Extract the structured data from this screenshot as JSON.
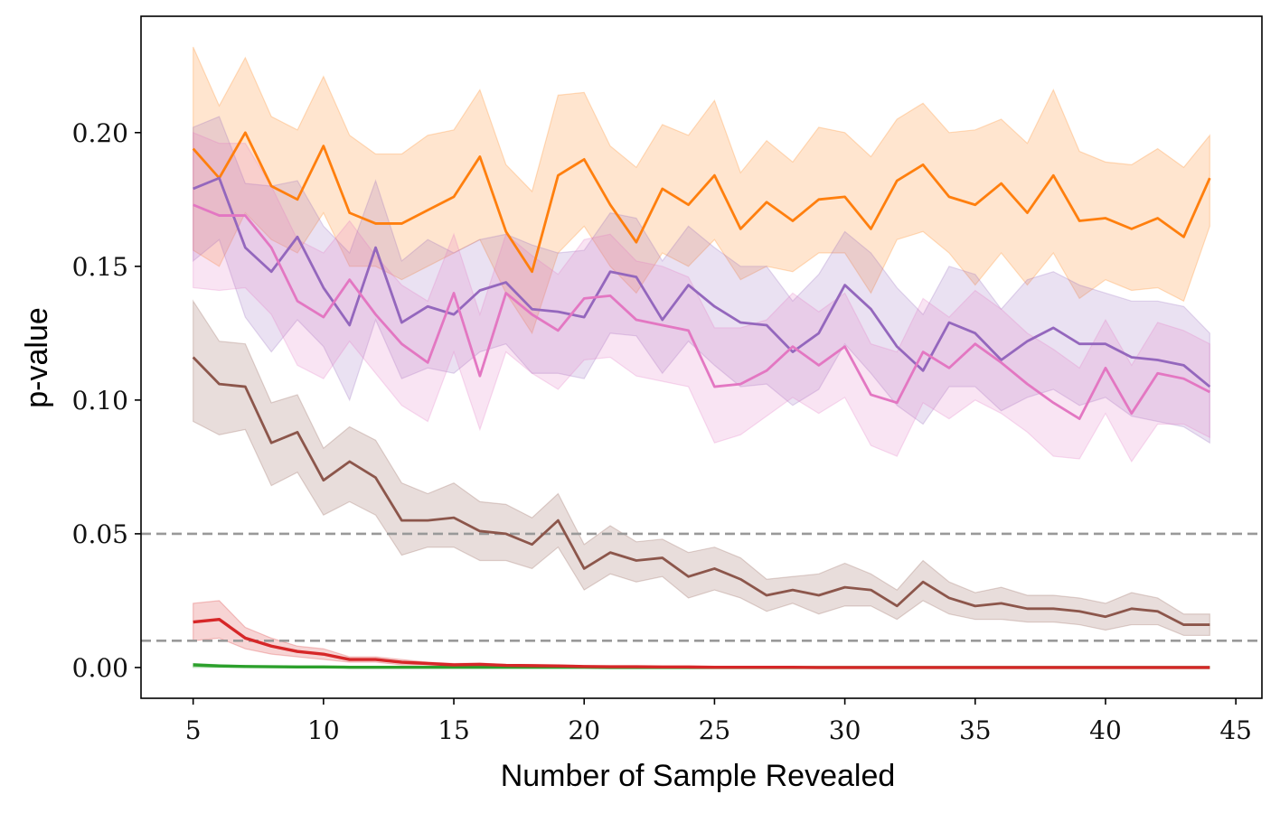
{
  "chart_data": {
    "type": "line",
    "xlabel": "Number of Sample Revealed",
    "ylabel": "p-value",
    "xlim": [
      3,
      46
    ],
    "ylim": [
      -0.0115,
      0.2435
    ],
    "xticks": [
      5,
      10,
      15,
      20,
      25,
      30,
      35,
      40,
      45
    ],
    "xtick_labels": [
      "5",
      "10",
      "15",
      "20",
      "25",
      "30",
      "35",
      "40",
      "45"
    ],
    "yticks": [
      0.0,
      0.05,
      0.1,
      0.15,
      0.2
    ],
    "ytick_labels": [
      "0.00",
      "0.05",
      "0.10",
      "0.15",
      "0.20"
    ],
    "grid": false,
    "reference_lines": [
      {
        "y": 0.05,
        "style": "dashed",
        "color": "#999999"
      },
      {
        "y": 0.01,
        "style": "dashed",
        "color": "#999999"
      }
    ],
    "x": [
      5,
      6,
      7,
      8,
      9,
      10,
      11,
      12,
      13,
      14,
      15,
      16,
      17,
      18,
      19,
      20,
      21,
      22,
      23,
      24,
      25,
      26,
      27,
      28,
      29,
      30,
      31,
      32,
      33,
      34,
      35,
      36,
      37,
      38,
      39,
      40,
      41,
      42,
      43,
      44
    ],
    "series": [
      {
        "color": "#ff7f0e",
        "values": [
          0.194,
          0.183,
          0.2,
          0.18,
          0.175,
          0.195,
          0.17,
          0.166,
          0.166,
          0.171,
          0.176,
          0.191,
          0.163,
          0.148,
          0.184,
          0.19,
          0.173,
          0.159,
          0.179,
          0.173,
          0.184,
          0.164,
          0.174,
          0.167,
          0.175,
          0.176,
          0.164,
          0.182,
          0.188,
          0.176,
          0.173,
          0.181,
          0.17,
          0.184,
          0.167,
          0.168,
          0.164,
          0.168,
          0.161,
          0.183
        ],
        "lower": [
          0.156,
          0.15,
          0.17,
          0.16,
          0.155,
          0.17,
          0.15,
          0.15,
          0.145,
          0.15,
          0.155,
          0.16,
          0.14,
          0.125,
          0.155,
          0.165,
          0.15,
          0.14,
          0.155,
          0.15,
          0.16,
          0.145,
          0.15,
          0.148,
          0.155,
          0.155,
          0.14,
          0.16,
          0.163,
          0.155,
          0.143,
          0.155,
          0.143,
          0.155,
          0.138,
          0.145,
          0.141,
          0.142,
          0.137,
          0.165
        ],
        "upper": [
          0.232,
          0.21,
          0.228,
          0.206,
          0.201,
          0.221,
          0.199,
          0.192,
          0.192,
          0.199,
          0.201,
          0.216,
          0.188,
          0.178,
          0.214,
          0.215,
          0.195,
          0.187,
          0.203,
          0.199,
          0.212,
          0.185,
          0.197,
          0.189,
          0.202,
          0.2,
          0.191,
          0.205,
          0.211,
          0.2,
          0.201,
          0.205,
          0.196,
          0.216,
          0.193,
          0.189,
          0.188,
          0.194,
          0.187,
          0.199
        ]
      },
      {
        "color": "#9467bd",
        "values": [
          0.179,
          0.183,
          0.157,
          0.148,
          0.161,
          0.142,
          0.128,
          0.157,
          0.129,
          0.135,
          0.132,
          0.141,
          0.144,
          0.134,
          0.133,
          0.131,
          0.148,
          0.146,
          0.13,
          0.143,
          0.135,
          0.129,
          0.128,
          0.118,
          0.125,
          0.143,
          0.134,
          0.12,
          0.111,
          0.129,
          0.125,
          0.115,
          0.122,
          0.127,
          0.121,
          0.121,
          0.116,
          0.115,
          0.113,
          0.105
        ],
        "lower": [
          0.152,
          0.16,
          0.131,
          0.118,
          0.13,
          0.12,
          0.1,
          0.13,
          0.108,
          0.112,
          0.11,
          0.118,
          0.121,
          0.11,
          0.11,
          0.108,
          0.125,
          0.124,
          0.11,
          0.122,
          0.113,
          0.105,
          0.106,
          0.098,
          0.104,
          0.121,
          0.11,
          0.098,
          0.091,
          0.105,
          0.105,
          0.096,
          0.101,
          0.104,
          0.098,
          0.101,
          0.094,
          0.092,
          0.09,
          0.084
        ],
        "upper": [
          0.202,
          0.206,
          0.181,
          0.18,
          0.182,
          0.165,
          0.155,
          0.182,
          0.152,
          0.16,
          0.155,
          0.16,
          0.162,
          0.158,
          0.155,
          0.156,
          0.17,
          0.168,
          0.152,
          0.165,
          0.157,
          0.15,
          0.15,
          0.137,
          0.147,
          0.163,
          0.155,
          0.142,
          0.132,
          0.15,
          0.147,
          0.134,
          0.145,
          0.148,
          0.143,
          0.14,
          0.137,
          0.137,
          0.135,
          0.125
        ]
      },
      {
        "color": "#e377c2",
        "values": [
          0.173,
          0.169,
          0.169,
          0.157,
          0.137,
          0.131,
          0.145,
          0.132,
          0.121,
          0.114,
          0.14,
          0.109,
          0.14,
          0.132,
          0.126,
          0.138,
          0.139,
          0.13,
          0.128,
          0.126,
          0.105,
          0.106,
          0.111,
          0.12,
          0.113,
          0.12,
          0.102,
          0.099,
          0.118,
          0.112,
          0.121,
          0.114,
          0.106,
          0.099,
          0.093,
          0.112,
          0.095,
          0.11,
          0.108,
          0.103
        ],
        "lower": [
          0.142,
          0.141,
          0.142,
          0.132,
          0.113,
          0.108,
          0.122,
          0.11,
          0.098,
          0.092,
          0.118,
          0.089,
          0.118,
          0.11,
          0.104,
          0.115,
          0.116,
          0.109,
          0.107,
          0.105,
          0.084,
          0.087,
          0.094,
          0.101,
          0.095,
          0.101,
          0.083,
          0.079,
          0.099,
          0.093,
          0.1,
          0.095,
          0.088,
          0.079,
          0.078,
          0.095,
          0.077,
          0.091,
          0.091,
          0.086
        ],
        "upper": [
          0.2,
          0.196,
          0.196,
          0.18,
          0.16,
          0.155,
          0.167,
          0.154,
          0.143,
          0.137,
          0.162,
          0.132,
          0.162,
          0.154,
          0.147,
          0.16,
          0.162,
          0.152,
          0.15,
          0.146,
          0.127,
          0.127,
          0.13,
          0.14,
          0.133,
          0.14,
          0.121,
          0.118,
          0.138,
          0.131,
          0.141,
          0.134,
          0.125,
          0.119,
          0.112,
          0.13,
          0.113,
          0.129,
          0.126,
          0.121
        ]
      },
      {
        "color": "#8c564b",
        "values": [
          0.116,
          0.106,
          0.105,
          0.084,
          0.088,
          0.07,
          0.077,
          0.071,
          0.055,
          0.055,
          0.056,
          0.051,
          0.05,
          0.046,
          0.055,
          0.037,
          0.043,
          0.04,
          0.041,
          0.034,
          0.037,
          0.033,
          0.027,
          0.029,
          0.027,
          0.03,
          0.029,
          0.023,
          0.032,
          0.026,
          0.023,
          0.024,
          0.022,
          0.022,
          0.021,
          0.019,
          0.022,
          0.021,
          0.016,
          0.016
        ],
        "lower": [
          0.092,
          0.087,
          0.089,
          0.068,
          0.073,
          0.057,
          0.062,
          0.057,
          0.042,
          0.045,
          0.045,
          0.04,
          0.04,
          0.037,
          0.045,
          0.029,
          0.035,
          0.032,
          0.034,
          0.026,
          0.029,
          0.026,
          0.021,
          0.024,
          0.02,
          0.023,
          0.023,
          0.018,
          0.025,
          0.02,
          0.018,
          0.018,
          0.017,
          0.017,
          0.016,
          0.014,
          0.016,
          0.016,
          0.012,
          0.012
        ],
        "upper": [
          0.137,
          0.122,
          0.121,
          0.099,
          0.102,
          0.082,
          0.09,
          0.085,
          0.069,
          0.065,
          0.069,
          0.062,
          0.061,
          0.056,
          0.065,
          0.046,
          0.053,
          0.047,
          0.048,
          0.043,
          0.045,
          0.041,
          0.033,
          0.034,
          0.035,
          0.039,
          0.035,
          0.029,
          0.04,
          0.032,
          0.028,
          0.03,
          0.027,
          0.027,
          0.026,
          0.024,
          0.028,
          0.026,
          0.02,
          0.02
        ]
      },
      {
        "color": "#2ca02c",
        "values": [
          0.001,
          0.0006,
          0.0004,
          0.0003,
          0.0002,
          0.0002,
          0.0001,
          0.0001,
          0.0001,
          0.0001,
          0.0001,
          0.0001,
          0.0001,
          0.0001,
          0.0001,
          0.0001,
          0.0,
          0.0,
          0.0,
          0.0,
          0.0,
          0.0,
          0.0,
          0.0,
          0.0,
          0.0,
          0.0,
          0.0,
          0.0,
          0.0,
          0.0,
          0.0,
          0.0,
          0.0,
          0.0,
          0.0,
          0.0,
          0.0,
          0.0,
          0.0
        ],
        "lower": [
          0.0,
          0.0,
          0.0,
          0.0,
          0.0,
          0.0,
          0.0,
          0.0,
          0.0,
          0.0,
          0.0,
          0.0,
          0.0,
          0.0,
          0.0,
          0.0,
          0.0,
          0.0,
          0.0,
          0.0,
          0.0,
          0.0,
          0.0,
          0.0,
          0.0,
          0.0,
          0.0,
          0.0,
          0.0,
          0.0,
          0.0,
          0.0,
          0.0,
          0.0,
          0.0,
          0.0,
          0.0,
          0.0,
          0.0,
          0.0
        ],
        "upper": [
          0.0015,
          0.001,
          0.0007,
          0.0005,
          0.0004,
          0.0003,
          0.0002,
          0.0002,
          0.0002,
          0.0002,
          0.0001,
          0.0001,
          0.0001,
          0.0001,
          0.0001,
          0.0001,
          0.0,
          0.0,
          0.0,
          0.0,
          0.0,
          0.0,
          0.0,
          0.0,
          0.0,
          0.0,
          0.0,
          0.0,
          0.0,
          0.0,
          0.0,
          0.0,
          0.0,
          0.0,
          0.0,
          0.0,
          0.0,
          0.0,
          0.0,
          0.0
        ]
      },
      {
        "color": "#d62728",
        "values": [
          0.017,
          0.018,
          0.011,
          0.008,
          0.006,
          0.005,
          0.003,
          0.003,
          0.002,
          0.0015,
          0.001,
          0.0012,
          0.0008,
          0.0007,
          0.0006,
          0.0004,
          0.0003,
          0.0003,
          0.0002,
          0.0002,
          0.0001,
          0.0001,
          0.0001,
          0.0001,
          0.0,
          0.0,
          0.0,
          0.0,
          0.0,
          0.0,
          0.0,
          0.0,
          0.0,
          0.0,
          0.0,
          0.0,
          0.0,
          0.0,
          0.0,
          0.0
        ],
        "lower": [
          0.01,
          0.011,
          0.007,
          0.005,
          0.004,
          0.003,
          0.002,
          0.002,
          0.001,
          0.001,
          0.0006,
          0.0007,
          0.0005,
          0.0004,
          0.0003,
          0.0002,
          0.0001,
          0.0001,
          0.0001,
          0.0001,
          0.0,
          0.0,
          0.0,
          0.0,
          0.0,
          0.0,
          0.0,
          0.0,
          0.0,
          0.0,
          0.0,
          0.0,
          0.0,
          0.0,
          0.0,
          0.0,
          0.0,
          0.0,
          0.0,
          0.0
        ],
        "upper": [
          0.024,
          0.025,
          0.015,
          0.011,
          0.008,
          0.007,
          0.004,
          0.004,
          0.003,
          0.002,
          0.0015,
          0.0017,
          0.0011,
          0.001,
          0.0009,
          0.0006,
          0.0005,
          0.0005,
          0.0003,
          0.0003,
          0.0002,
          0.0002,
          0.0002,
          0.0002,
          0.0001,
          0.0001,
          0.0,
          0.0,
          0.0,
          0.0,
          0.0,
          0.0,
          0.0,
          0.0,
          0.0,
          0.0,
          0.0,
          0.0,
          0.0,
          0.0
        ]
      }
    ]
  }
}
